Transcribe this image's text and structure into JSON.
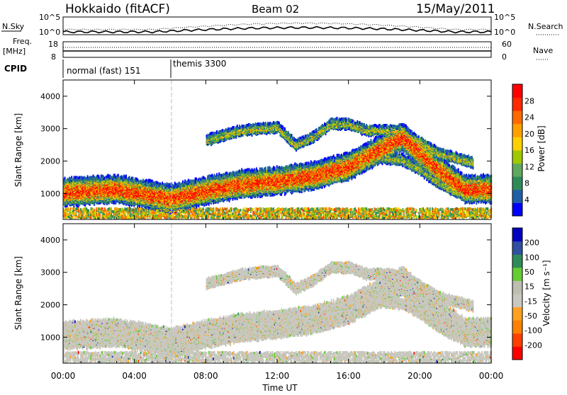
{
  "header": {
    "station": "Hokkaido (fitACF)",
    "beam": "Beam 02",
    "date": "15/May/2011"
  },
  "summary": {
    "left_top_label": "N.Sky",
    "left_mid_label_1": "Freq.",
    "left_mid_label_2": "[MHz]",
    "left_cpid_label": "CPID",
    "right_top_label": "N.Search",
    "right_mid_label": "Nave",
    "nsky_ticks": [
      "10^5",
      "10^0"
    ],
    "nsearch_ticks": [
      "10^5",
      "10^0"
    ],
    "freq_ticks": [
      "18",
      "8"
    ],
    "nave_ticks": [
      "60",
      "0"
    ],
    "cpid_segments": [
      {
        "label": "normal (fast) 151",
        "start_hour": 0
      },
      {
        "label": "themis 3300",
        "start_hour": 6
      }
    ]
  },
  "colors": {
    "power_scale": [
      "#0000ff",
      "#1f5fa8",
      "#2e8b57",
      "#5fa85f",
      "#a0c800",
      "#ffd000",
      "#ffa000",
      "#ff6a00",
      "#ff2800",
      "#ff0000"
    ],
    "velocity_scale": [
      "#0000c0",
      "#2f4fa0",
      "#2e8b57",
      "#66cc33",
      "#bdbdb0",
      "#c8c8c0",
      "#ffa020",
      "#ff8000",
      "#ff4000",
      "#ff0000"
    ],
    "background_grey": "#c8c8c0"
  },
  "chart_data": [
    {
      "type": "heatmap",
      "name": "power",
      "ylabel": "Slant Range [km]",
      "yticks": [
        1000,
        2000,
        3000,
        4000
      ],
      "ylim": [
        200,
        4500
      ],
      "xlim": [
        0,
        24
      ],
      "colorbar_label": "Power [dB]",
      "colorbar_ticks": [
        4,
        8,
        12,
        16,
        20,
        24,
        28
      ],
      "colorbar_range": [
        0,
        32
      ]
    },
    {
      "type": "heatmap",
      "name": "velocity",
      "ylabel": "Slant Range [km]",
      "yticks": [
        1000,
        2000,
        3000,
        4000
      ],
      "ylim": [
        200,
        4500
      ],
      "xlim": [
        0,
        24
      ],
      "colorbar_label": "Velocity [m s⁻¹]",
      "colorbar_ticks": [
        200,
        100,
        50,
        15,
        -15,
        -50,
        -100,
        -200
      ]
    }
  ],
  "xaxis": {
    "label": "Time UT",
    "ticks": [
      "00:00",
      "04:00",
      "08:00",
      "12:00",
      "16:00",
      "20:00",
      "00:00"
    ],
    "tick_hours": [
      0,
      4,
      8,
      12,
      16,
      20,
      24
    ]
  }
}
